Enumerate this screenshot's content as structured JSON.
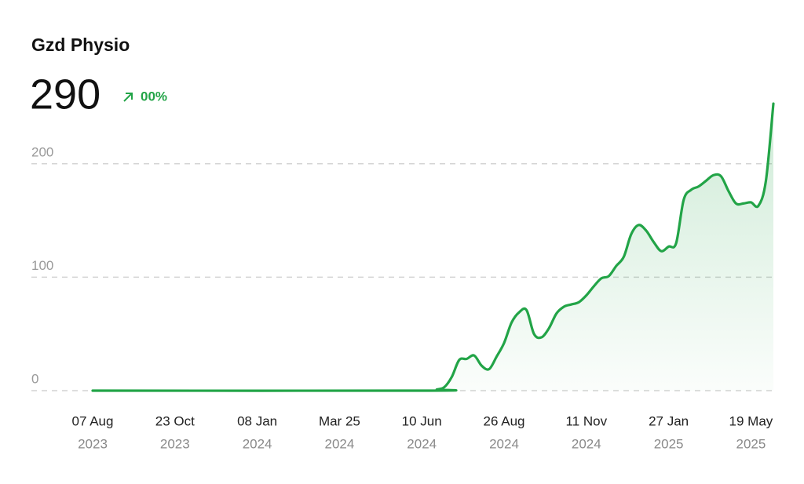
{
  "chart_data": {
    "type": "line",
    "title": "Gzd Physio",
    "headline_value": "290",
    "change": "00%",
    "x": [
      0,
      45,
      46,
      47,
      48,
      49,
      50,
      51,
      52,
      53,
      54,
      55,
      56,
      57,
      58,
      59,
      60,
      61,
      62,
      63,
      64,
      65,
      66,
      67,
      68,
      69,
      70,
      71,
      72,
      73,
      74,
      75,
      76,
      77,
      78,
      79,
      80,
      81,
      82,
      83,
      84,
      85,
      86,
      87,
      88,
      89,
      90,
      91
    ],
    "series": [
      {
        "name": "Gzd Physio",
        "color": "#22a447",
        "values": [
          0,
          0,
          1,
          3,
          12,
          27,
          28,
          31,
          22,
          19,
          30,
          42,
          60,
          69,
          71,
          50,
          47,
          55,
          68,
          74,
          76,
          78,
          84,
          92,
          99,
          101,
          110,
          118,
          138,
          146,
          141,
          131,
          123,
          127,
          130,
          168,
          177,
          180,
          185,
          190,
          189,
          176,
          165,
          165,
          166,
          163,
          185,
          253
        ]
      }
    ],
    "xlim": [
      0,
      91
    ],
    "xticks": [
      {
        "value": 0,
        "label": "07 Aug",
        "year": "2023"
      },
      {
        "value": 11,
        "label": "23 Oct",
        "year": "2023"
      },
      {
        "value": 22,
        "label": "08 Jan",
        "year": "2024"
      },
      {
        "value": 33,
        "label": "Mar 25",
        "year": "2024"
      },
      {
        "value": 44,
        "label": "10 Jun",
        "year": "2024"
      },
      {
        "value": 55,
        "label": "26 Aug",
        "year": "2024"
      },
      {
        "value": 66,
        "label": "11 Nov",
        "year": "2024"
      },
      {
        "value": 77,
        "label": "27 Jan",
        "year": "2025"
      },
      {
        "value": 88,
        "label": "19 May",
        "year": "2025"
      }
    ],
    "ylim": [
      0,
      260
    ],
    "yticks": [
      0,
      100,
      200
    ],
    "grid": true
  }
}
